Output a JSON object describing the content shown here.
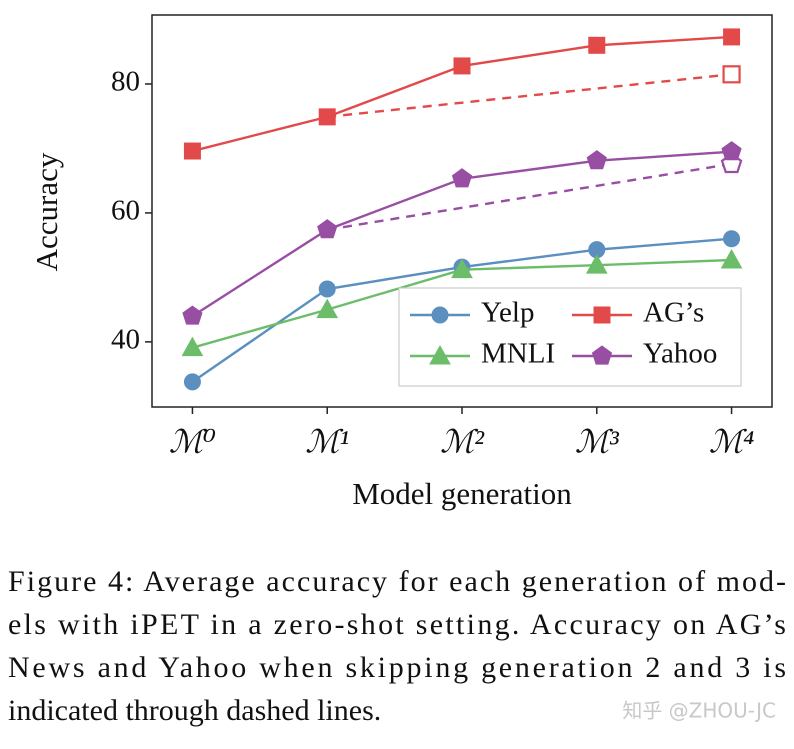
{
  "chart_data": {
    "type": "line",
    "ylabel": "Accuracy",
    "xlabel": "Model generation",
    "xlim": [
      -0.3,
      4.3
    ],
    "xticks": [
      {
        "value": 0,
        "label": "ℳ⁰"
      },
      {
        "value": 1,
        "label": "ℳ¹"
      },
      {
        "value": 2,
        "label": "ℳ²"
      },
      {
        "value": 3,
        "label": "ℳ³"
      },
      {
        "value": 4,
        "label": "ℳ⁴"
      }
    ],
    "ylim": [
      29.9,
      90.7
    ],
    "yticks": [
      40,
      60,
      80
    ],
    "legend": "lower right",
    "series": [
      {
        "name": "Yelp",
        "color": "#5b8fbf",
        "marker": "circle",
        "x": [
          0,
          1,
          2,
          3,
          4
        ],
        "values": [
          33.8,
          48.2,
          51.6,
          54.3,
          56.0
        ]
      },
      {
        "name": "AG’s",
        "color": "#e24a4a",
        "marker": "square",
        "x": [
          0,
          1,
          2,
          3,
          4
        ],
        "values": [
          69.6,
          74.9,
          82.8,
          86.0,
          87.3
        ]
      },
      {
        "name": "MNLI",
        "color": "#6cbd6a",
        "marker": "triangle",
        "x": [
          0,
          1,
          2,
          3,
          4
        ],
        "values": [
          39.1,
          45.0,
          51.2,
          51.9,
          52.7
        ]
      },
      {
        "name": "Yahoo",
        "color": "#984ea3",
        "marker": "pentagon",
        "x": [
          0,
          1,
          2,
          3,
          4
        ],
        "values": [
          44.0,
          57.4,
          65.3,
          68.1,
          69.5
        ]
      }
    ],
    "dashed_series": [
      {
        "color": "#e24a4a",
        "marker": "square",
        "x": [
          1,
          4
        ],
        "values": [
          74.9,
          81.5
        ]
      },
      {
        "color": "#984ea3",
        "marker": "pentagon",
        "x": [
          1,
          4
        ],
        "values": [
          57.4,
          67.6
        ]
      }
    ]
  },
  "caption": [
    "Figure 4: Average accuracy for each generation of mod-",
    "els with iPET in a zero-shot setting. Accuracy on AG’s",
    "News and Yahoo when skipping generation 2 and 3 is",
    "indicated through dashed lines."
  ],
  "watermark": "知乎 @ZHOU-JC"
}
